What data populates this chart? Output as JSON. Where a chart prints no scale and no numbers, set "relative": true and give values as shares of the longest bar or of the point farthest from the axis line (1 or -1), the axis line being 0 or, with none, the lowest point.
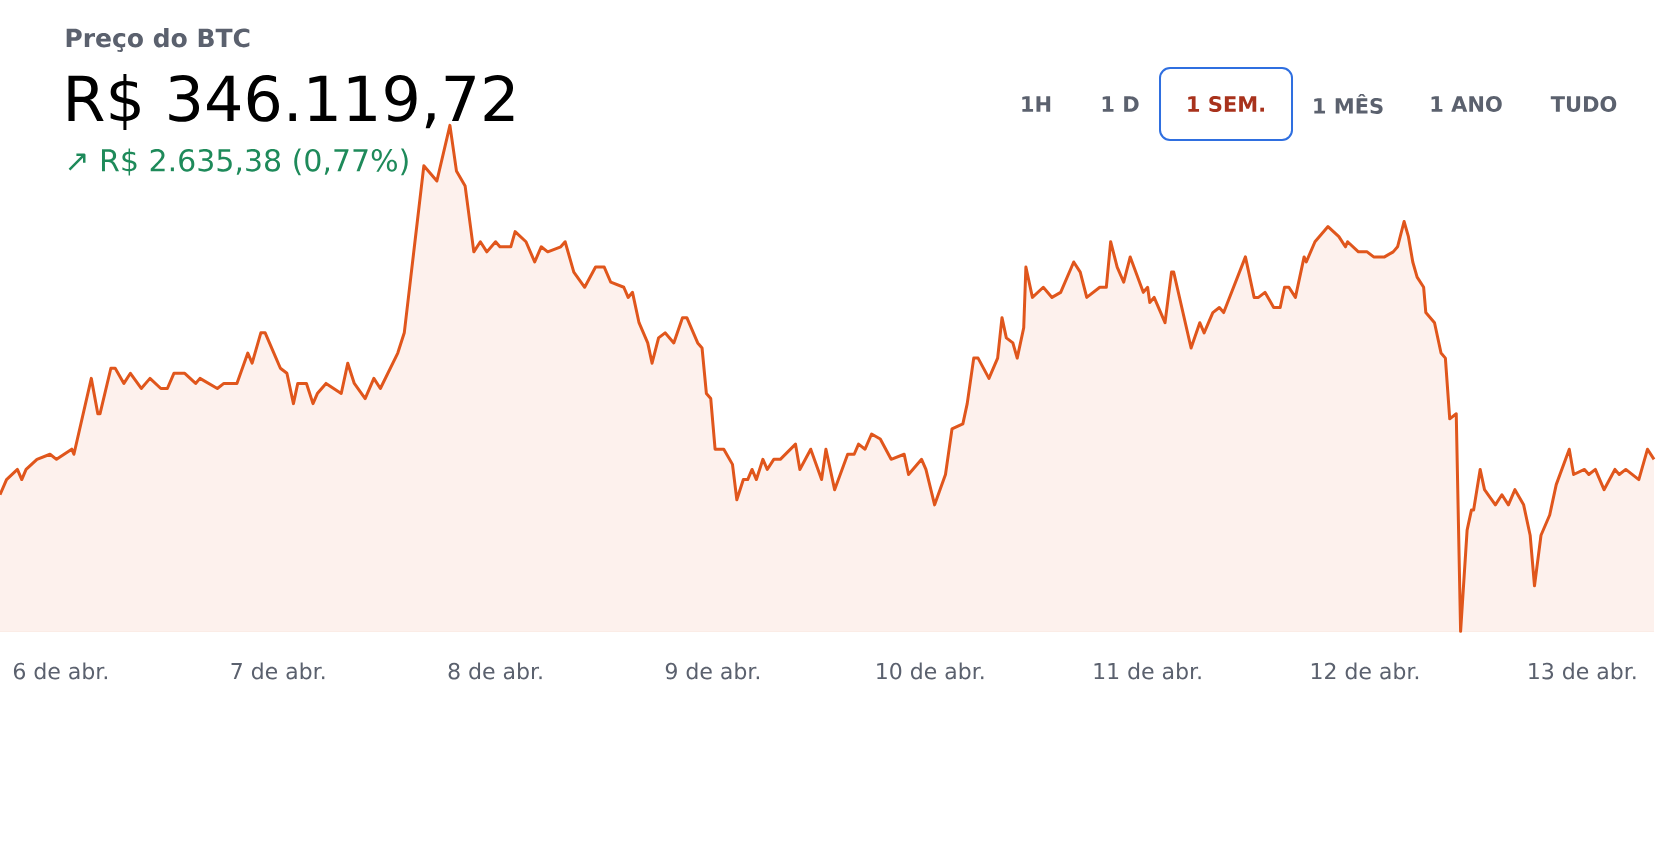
{
  "chart_data": {
    "type": "area",
    "title": "Preço do BTC",
    "subtitle": "R$ 346.119,72",
    "annotations": [
      "↗ R$ 2.635,38 (0,77%)",
      "1H",
      "1 D",
      "1 SEM.",
      "1 MÊS",
      "1 ANO",
      "TUDO"
    ],
    "relative": true,
    "color": "#e0561c",
    "xlim": [
      5.72,
      13.33
    ],
    "xticks": [
      {
        "value": 6,
        "label": "6 de abr."
      },
      {
        "value": 7,
        "label": "7 de abr."
      },
      {
        "value": 8,
        "label": "8 de abr."
      },
      {
        "value": 9,
        "label": "9 de abr."
      },
      {
        "value": 10,
        "label": "10 de abr."
      },
      {
        "value": 11,
        "label": "11 de abr."
      },
      {
        "value": 12,
        "label": "12 de abr."
      },
      {
        "value": 13,
        "label": "13 de abr."
      }
    ],
    "x": [
      5.72,
      5.75,
      5.8,
      5.82,
      5.84,
      5.89,
      5.95,
      5.98,
      6.05,
      6.06,
      6.14,
      6.17,
      6.18,
      6.23,
      6.25,
      6.29,
      6.32,
      6.37,
      6.41,
      6.46,
      6.49,
      6.52,
      6.57,
      6.62,
      6.64,
      6.72,
      6.75,
      6.81,
      6.86,
      6.88,
      6.92,
      6.94,
      6.98,
      7.01,
      7.04,
      7.07,
      7.09,
      7.13,
      7.16,
      7.18,
      7.22,
      7.29,
      7.32,
      7.35,
      7.4,
      7.44,
      7.47,
      7.55,
      7.58,
      7.61,
      7.64,
      7.67,
      7.73,
      7.79,
      7.82,
      7.86,
      7.9,
      7.93,
      7.96,
      8.0,
      8.02,
      8.07,
      8.09,
      8.14,
      8.18,
      8.21,
      8.24,
      8.3,
      8.32,
      8.36,
      8.41,
      8.46,
      8.5,
      8.53,
      8.59,
      8.61,
      8.63,
      8.66,
      8.7,
      8.72,
      8.75,
      8.78,
      8.82,
      8.86,
      8.88,
      8.93,
      8.95,
      8.97,
      8.99,
      9.01,
      9.05,
      9.09,
      9.11,
      9.14,
      9.16,
      9.18,
      9.2,
      9.23,
      9.25,
      9.28,
      9.31,
      9.38,
      9.4,
      9.45,
      9.5,
      9.52,
      9.56,
      9.62,
      9.65,
      9.67,
      9.7,
      9.73,
      9.77,
      9.82,
      9.88,
      9.9,
      9.96,
      9.98,
      10.02,
      10.07,
      10.1,
      10.15,
      10.17,
      10.2,
      10.22,
      10.27,
      10.31,
      10.33,
      10.35,
      10.38,
      10.4,
      10.43,
      10.44,
      10.47,
      10.52,
      10.56,
      10.6,
      10.66,
      10.69,
      10.72,
      10.78,
      10.81,
      10.83,
      10.86,
      10.89,
      10.92,
      10.98,
      11.0,
      11.01,
      11.03,
      11.08,
      11.11,
      11.12,
      11.2,
      11.24,
      11.26,
      11.3,
      11.33,
      11.35,
      11.45,
      11.49,
      11.51,
      11.54,
      11.58,
      11.61,
      11.63,
      11.65,
      11.68,
      11.72,
      11.73,
      11.77,
      11.83,
      11.88,
      11.91,
      11.92,
      11.97,
      12.01,
      12.04,
      12.09,
      12.13,
      12.15,
      12.18,
      12.2,
      12.22,
      12.24,
      12.27,
      12.28,
      12.32,
      12.35,
      12.37,
      12.39,
      12.42,
      12.44,
      12.47,
      12.49,
      12.5,
      12.53,
      12.55,
      12.6,
      12.63,
      12.66,
      12.69,
      12.73,
      12.76,
      12.78,
      12.81,
      12.85,
      12.88,
      12.94,
      12.96,
      13.01,
      13.03,
      13.06,
      13.1,
      13.15,
      13.17,
      13.2,
      13.26,
      13.3,
      13.33
    ],
    "values": [
      0.27,
      0.3,
      0.32,
      0.3,
      0.32,
      0.34,
      0.35,
      0.34,
      0.36,
      0.35,
      0.5,
      0.43,
      0.43,
      0.52,
      0.52,
      0.49,
      0.51,
      0.48,
      0.5,
      0.48,
      0.48,
      0.51,
      0.51,
      0.49,
      0.5,
      0.48,
      0.49,
      0.49,
      0.55,
      0.53,
      0.59,
      0.59,
      0.55,
      0.52,
      0.51,
      0.45,
      0.49,
      0.49,
      0.45,
      0.47,
      0.49,
      0.47,
      0.53,
      0.49,
      0.46,
      0.5,
      0.48,
      0.55,
      0.59,
      0.7,
      0.81,
      0.92,
      0.89,
      1.0,
      0.91,
      0.88,
      0.75,
      0.77,
      0.75,
      0.77,
      0.76,
      0.76,
      0.79,
      0.77,
      0.73,
      0.76,
      0.75,
      0.76,
      0.77,
      0.71,
      0.68,
      0.72,
      0.72,
      0.69,
      0.68,
      0.66,
      0.67,
      0.61,
      0.57,
      0.53,
      0.58,
      0.59,
      0.57,
      0.62,
      0.62,
      0.57,
      0.56,
      0.47,
      0.46,
      0.36,
      0.36,
      0.33,
      0.26,
      0.3,
      0.3,
      0.32,
      0.3,
      0.34,
      0.32,
      0.34,
      0.34,
      0.37,
      0.32,
      0.36,
      0.3,
      0.36,
      0.28,
      0.35,
      0.35,
      0.37,
      0.36,
      0.39,
      0.38,
      0.34,
      0.35,
      0.31,
      0.34,
      0.32,
      0.25,
      0.31,
      0.4,
      0.41,
      0.45,
      0.54,
      0.54,
      0.5,
      0.54,
      0.62,
      0.58,
      0.57,
      0.54,
      0.6,
      0.72,
      0.66,
      0.68,
      0.66,
      0.67,
      0.73,
      0.71,
      0.66,
      0.68,
      0.68,
      0.77,
      0.72,
      0.69,
      0.74,
      0.67,
      0.68,
      0.65,
      0.66,
      0.61,
      0.71,
      0.71,
      0.56,
      0.61,
      0.59,
      0.63,
      0.64,
      0.63,
      0.74,
      0.66,
      0.66,
      0.67,
      0.64,
      0.64,
      0.68,
      0.68,
      0.66,
      0.74,
      0.73,
      0.77,
      0.8,
      0.78,
      0.76,
      0.77,
      0.75,
      0.75,
      0.74,
      0.74,
      0.75,
      0.76,
      0.81,
      0.78,
      0.73,
      0.7,
      0.68,
      0.63,
      0.61,
      0.55,
      0.54,
      0.42,
      0.43,
      0,
      0.2,
      0.24,
      0.24,
      0.32,
      0.28,
      0.25,
      0.27,
      0.25,
      0.28,
      0.25,
      0.19,
      0.09,
      0.19,
      0.23,
      0.29,
      0.36,
      0.31,
      0.32,
      0.31,
      0.32,
      0.28,
      0.32,
      0.31,
      0.32,
      0.3,
      0.36,
      0.34
    ]
  }
}
